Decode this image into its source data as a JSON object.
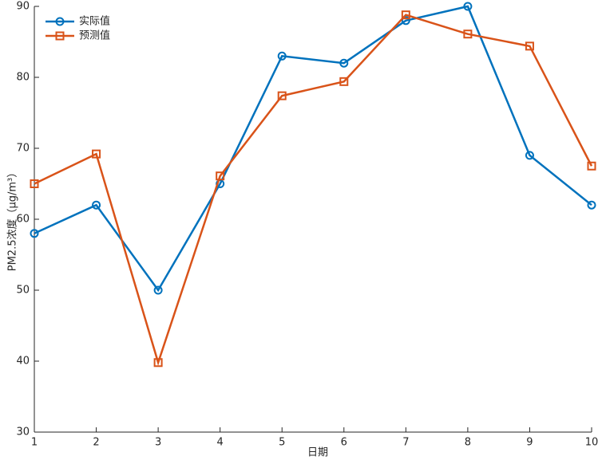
{
  "chart_data": {
    "type": "line",
    "x": [
      1,
      2,
      3,
      4,
      5,
      6,
      7,
      8,
      9,
      10
    ],
    "series": [
      {
        "name": "实际值",
        "color": "#0072BD",
        "marker": "circle",
        "values": [
          58,
          62,
          50,
          65,
          83,
          82,
          88,
          90,
          69,
          62
        ]
      },
      {
        "name": "预测值",
        "color": "#D95319",
        "marker": "square",
        "values": [
          65,
          69.2,
          39.8,
          66.1,
          77.4,
          79.4,
          88.8,
          86.1,
          84.4,
          67.5
        ]
      }
    ],
    "xlabel": "日期",
    "ylabel": "PM2.5浓度（μg/m³）",
    "xlim": [
      1,
      10
    ],
    "xticks": [
      1,
      2,
      3,
      4,
      5,
      6,
      7,
      8,
      9,
      10
    ],
    "ylim": [
      30,
      90
    ],
    "yticks": [
      30,
      40,
      50,
      60,
      70,
      80,
      90
    ],
    "legend": "upper-left",
    "grid": false
  }
}
